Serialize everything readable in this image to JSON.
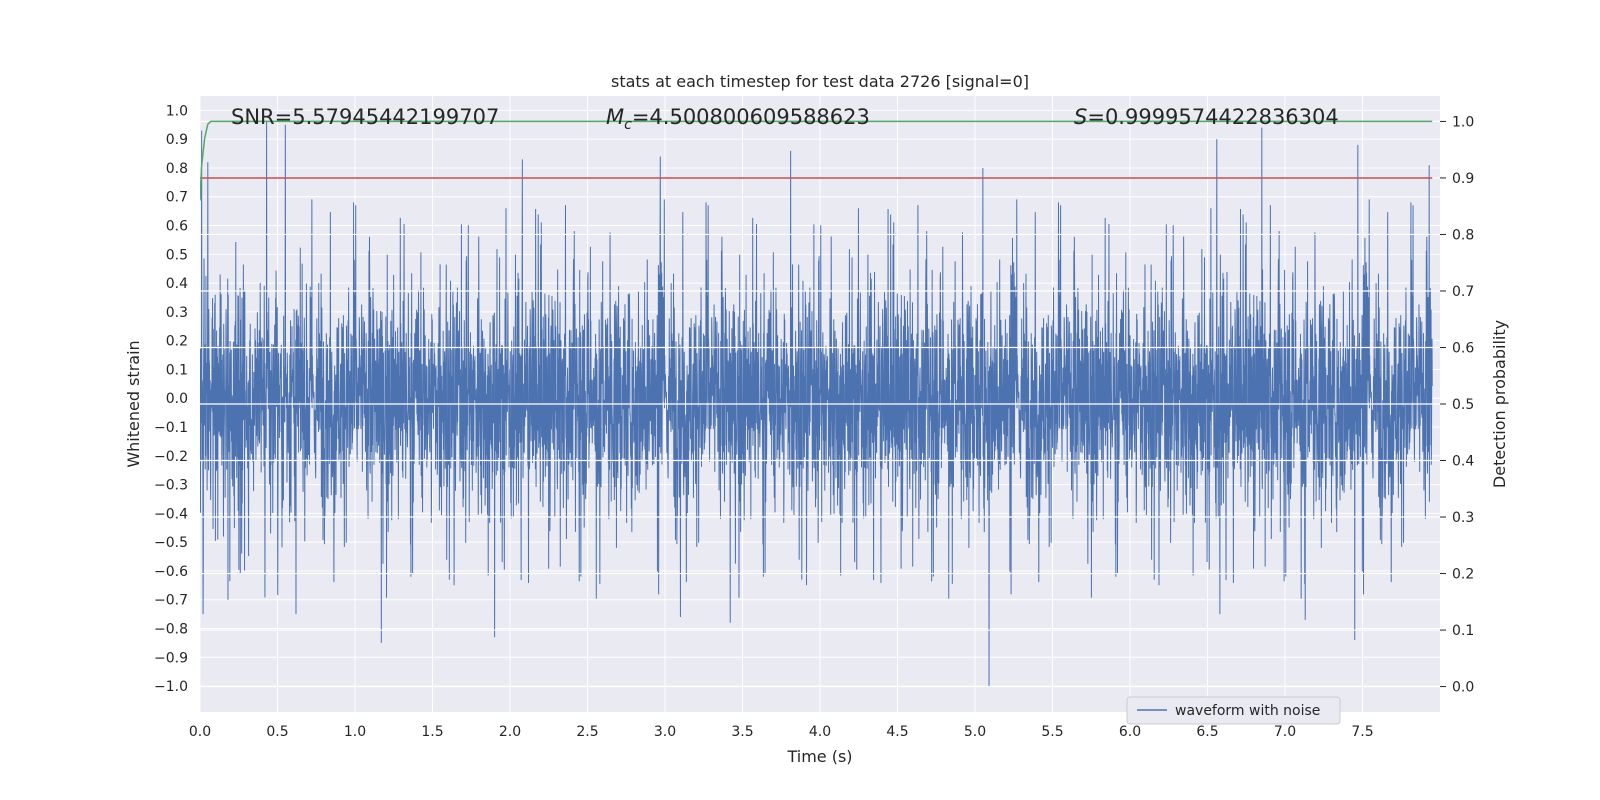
{
  "chart_data": {
    "type": "line",
    "title": "stats at each timestep for test data 2726 [signal=0]",
    "xlabel": "Time (s)",
    "ylabel_left": "Whitened strain",
    "ylabel_right": "Detection probability",
    "xlim": [
      0.0,
      8.0
    ],
    "ylim_left": [
      -1.09,
      1.05
    ],
    "ylim_right": [
      -0.045,
      1.045
    ],
    "x_ticks": [
      "0.0",
      "0.5",
      "1.0",
      "1.5",
      "2.0",
      "2.5",
      "3.0",
      "3.5",
      "4.0",
      "4.5",
      "5.0",
      "5.5",
      "6.0",
      "6.5",
      "7.0",
      "7.5"
    ],
    "y_left_ticks": [
      "1.0",
      "0.9",
      "0.8",
      "0.7",
      "0.6",
      "0.5",
      "0.4",
      "0.3",
      "0.2",
      "0.1",
      "0.0",
      "−0.1",
      "−0.2",
      "−0.3",
      "−0.4",
      "−0.5",
      "−0.6",
      "−0.7",
      "−0.8",
      "−0.9",
      "−1.0"
    ],
    "y_right_ticks": [
      "1.0",
      "0.9",
      "0.8",
      "0.7",
      "0.6",
      "0.5",
      "0.4",
      "0.3",
      "0.2",
      "0.1",
      "0.0"
    ],
    "grid": true,
    "legend_placement": "lower-center-right",
    "annotations": {
      "snr": "SNR=5.57945442199707",
      "mc_symbol": "M",
      "mc_sub": "c",
      "mc_value": "=4.500800609588623",
      "s_symbol": "S",
      "s_value": "=0.9999574422836304"
    },
    "series": [
      {
        "name": "waveform with noise",
        "axis": "left",
        "color": "#4c72b0",
        "rms": 0.19,
        "duration_s": 7.95,
        "peaks": [
          {
            "x": 0.01,
            "y": 0.93
          },
          {
            "x": 0.05,
            "y": 0.82
          },
          {
            "x": 0.43,
            "y": 0.96
          },
          {
            "x": 0.55,
            "y": 0.95
          },
          {
            "x": 2.08,
            "y": 0.83
          },
          {
            "x": 2.97,
            "y": 0.84
          },
          {
            "x": 3.81,
            "y": 0.86
          },
          {
            "x": 5.05,
            "y": 0.8
          },
          {
            "x": 6.56,
            "y": 0.9
          },
          {
            "x": 6.85,
            "y": 0.94
          },
          {
            "x": 7.47,
            "y": 0.88
          },
          {
            "x": 7.93,
            "y": 0.81
          }
        ],
        "troughs": [
          {
            "x": 0.02,
            "y": -0.75
          },
          {
            "x": 0.18,
            "y": -0.7
          },
          {
            "x": 0.62,
            "y": -0.75
          },
          {
            "x": 1.17,
            "y": -0.85
          },
          {
            "x": 1.9,
            "y": -0.83
          },
          {
            "x": 3.1,
            "y": -0.76
          },
          {
            "x": 3.42,
            "y": -0.78
          },
          {
            "x": 5.09,
            "y": -1.0
          },
          {
            "x": 6.58,
            "y": -0.75
          },
          {
            "x": 7.13,
            "y": -0.77
          },
          {
            "x": 7.45,
            "y": -0.84
          }
        ]
      },
      {
        "name": "Detection probability",
        "axis": "right",
        "color": "#55a868",
        "x": [
          0.0,
          0.01,
          0.03,
          0.05,
          0.07,
          7.95
        ],
        "y": [
          0.86,
          0.92,
          0.97,
          0.995,
          1.0,
          1.0
        ]
      },
      {
        "name": "threshold",
        "axis": "right",
        "color": "#c44e52",
        "x": [
          0.0,
          7.95
        ],
        "y": [
          0.9,
          0.9
        ]
      }
    ]
  }
}
